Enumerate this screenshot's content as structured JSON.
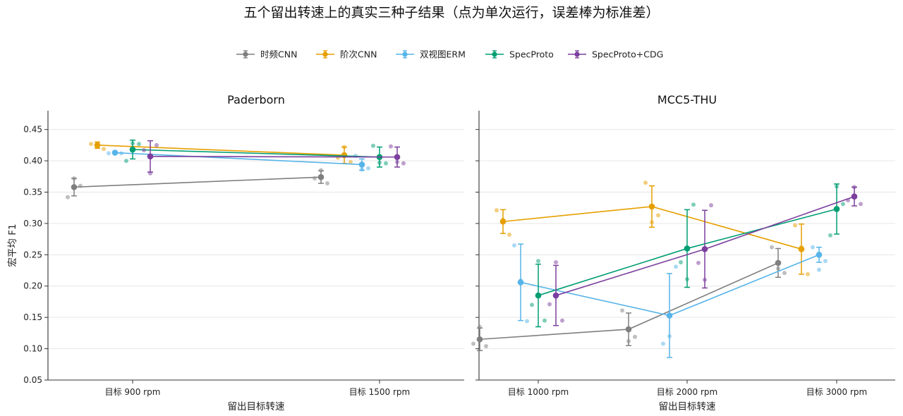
{
  "title": "五个留出转速上的真实三种子结果（点为单次运行，误差棒为标准差）",
  "colors": {
    "时频CNN": "#7f7f7f",
    "阶次CNN": "#E69F00",
    "双视图ERM": "#56B4E9",
    "SpecProto": "#009E73",
    "SpecProto+CDG": "#7B3F9E"
  },
  "legend": [
    "时频CNN",
    "阶次CNN",
    "双视图ERM",
    "SpecProto",
    "SpecProto+CDG"
  ],
  "chart_data": [
    {
      "type": "line",
      "title": "Paderborn",
      "xlabel": "留出目标转速",
      "ylabel": "宏平均 F1",
      "categories": [
        "目标 900 rpm",
        "目标 1500 rpm"
      ],
      "ylim": [
        0.05,
        0.48
      ],
      "yticks": [
        0.05,
        0.1,
        0.15,
        0.2,
        0.25,
        0.3,
        0.35,
        0.4,
        0.45
      ],
      "grid": "y",
      "series": [
        {
          "name": "时频CNN",
          "means": [
            0.358,
            0.374
          ],
          "std": [
            0.014,
            0.01
          ],
          "runs": [
            [
              0.342,
              0.372,
              0.36
            ],
            [
              0.372,
              0.385,
              0.364
            ]
          ]
        },
        {
          "name": "阶次CNN",
          "means": [
            0.425,
            0.409
          ],
          "std": [
            0.005,
            0.013
          ],
          "runs": [
            [
              0.427,
              0.422,
              0.419
            ],
            [
              0.405,
              0.422,
              0.398
            ]
          ]
        },
        {
          "name": "双视图ERM",
          "means": [
            0.413,
            0.394
          ],
          "std": [
            0.001,
            0.009
          ],
          "runs": [
            [
              0.412,
              0.414,
              0.412
            ],
            [
              0.408,
              0.386,
              0.388
            ]
          ]
        },
        {
          "name": "SpecProto",
          "means": [
            0.418,
            0.406
          ],
          "std": [
            0.015,
            0.016
          ],
          "runs": [
            [
              0.4,
              0.428,
              0.427
            ],
            [
              0.424,
              0.397,
              0.396
            ]
          ]
        },
        {
          "name": "SpecProto+CDG",
          "means": [
            0.407,
            0.406
          ],
          "std": [
            0.025,
            0.016
          ],
          "runs": [
            [
              0.417,
              0.38,
              0.425
            ],
            [
              0.423,
              0.398,
              0.396
            ]
          ]
        }
      ]
    },
    {
      "type": "line",
      "title": "MCC5-THU",
      "xlabel": "留出目标转速",
      "ylabel": "",
      "categories": [
        "目标 1000 rpm",
        "目标 2000 rpm",
        "目标 3000 rpm"
      ],
      "ylim": [
        0.05,
        0.48
      ],
      "yticks": [
        0.05,
        0.1,
        0.15,
        0.2,
        0.25,
        0.3,
        0.35,
        0.4,
        0.45
      ],
      "grid": "y",
      "series": [
        {
          "name": "时频CNN",
          "means": [
            0.115,
            0.131,
            0.237
          ],
          "std": [
            0.018,
            0.026,
            0.023
          ],
          "runs": [
            [
              0.108,
              0.135,
              0.104
            ],
            [
              0.161,
              0.112,
              0.119
            ],
            [
              0.262,
              0.228,
              0.221
            ]
          ]
        },
        {
          "name": "阶次CNN",
          "means": [
            0.303,
            0.327,
            0.259
          ],
          "std": [
            0.019,
            0.033,
            0.04
          ],
          "runs": [
            [
              0.321,
              0.306,
              0.282
            ],
            [
              0.365,
              0.302,
              0.313
            ],
            [
              0.297,
              0.262,
              0.219
            ]
          ]
        },
        {
          "name": "双视图ERM",
          "means": [
            0.206,
            0.153,
            0.25
          ],
          "std": [
            0.061,
            0.067,
            0.012
          ],
          "runs": [
            [
              0.265,
              0.209,
              0.144
            ],
            [
              0.108,
              0.12,
              0.231
            ],
            [
              0.262,
              0.226,
              0.24
            ]
          ]
        },
        {
          "name": "SpecProto",
          "means": [
            0.185,
            0.26,
            0.323
          ],
          "std": [
            0.05,
            0.062,
            0.04
          ],
          "runs": [
            [
              0.17,
              0.24,
              0.145
            ],
            [
              0.238,
              0.211,
              0.33
            ],
            [
              0.281,
              0.359,
              0.331
            ]
          ]
        },
        {
          "name": "SpecProto+CDG",
          "means": [
            0.185,
            0.259,
            0.343
          ],
          "std": [
            0.048,
            0.062,
            0.015
          ],
          "runs": [
            [
              0.171,
              0.238,
              0.145
            ],
            [
              0.237,
              0.21,
              0.329
            ],
            [
              0.337,
              0.358,
              0.331
            ]
          ]
        }
      ]
    }
  ]
}
